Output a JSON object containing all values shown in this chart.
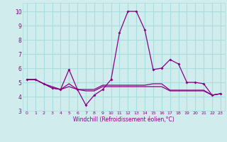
{
  "xlabel": "Windchill (Refroidissement éolien,°C)",
  "x": [
    0,
    1,
    2,
    3,
    4,
    5,
    6,
    7,
    8,
    9,
    10,
    11,
    12,
    13,
    14,
    15,
    16,
    17,
    18,
    19,
    20,
    21,
    22,
    23
  ],
  "line1_y": [
    5.2,
    5.2,
    4.9,
    4.6,
    4.5,
    5.9,
    4.5,
    3.4,
    4.1,
    4.5,
    5.2,
    8.5,
    10.0,
    10.0,
    8.7,
    5.9,
    6.0,
    6.6,
    6.3,
    5.0,
    5.0,
    4.9,
    4.1,
    4.2
  ],
  "line2_y": [
    5.2,
    5.2,
    4.9,
    4.6,
    4.5,
    4.9,
    4.5,
    4.4,
    4.4,
    4.7,
    4.7,
    4.7,
    4.7,
    4.7,
    4.7,
    4.7,
    4.7,
    4.4,
    4.4,
    4.4,
    4.4,
    4.4,
    4.1,
    4.2
  ],
  "line3_y": [
    5.2,
    5.2,
    4.9,
    4.7,
    4.5,
    4.7,
    4.5,
    4.5,
    4.5,
    4.8,
    4.8,
    4.8,
    4.8,
    4.8,
    4.8,
    4.9,
    4.9,
    4.45,
    4.45,
    4.45,
    4.45,
    4.45,
    4.1,
    4.2
  ],
  "line_color": "#880088",
  "bg_color": "#d0ecec",
  "grid_color": "#aadddd",
  "text_color": "#880088",
  "ylim": [
    3.0,
    10.6
  ],
  "yticks": [
    3,
    4,
    5,
    6,
    7,
    8,
    9,
    10
  ],
  "xlim": [
    -0.5,
    23.5
  ]
}
